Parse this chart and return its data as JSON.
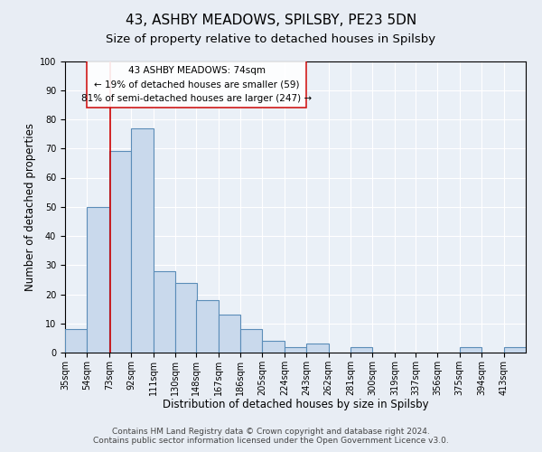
{
  "title": "43, ASHBY MEADOWS, SPILSBY, PE23 5DN",
  "subtitle": "Size of property relative to detached houses in Spilsby",
  "xlabel": "Distribution of detached houses by size in Spilsby",
  "ylabel": "Number of detached properties",
  "footer_line1": "Contains HM Land Registry data © Crown copyright and database right 2024.",
  "footer_line2": "Contains public sector information licensed under the Open Government Licence v3.0.",
  "bin_edges": [
    35,
    54,
    73,
    92,
    111,
    130,
    148,
    167,
    186,
    205,
    224,
    243,
    262,
    281,
    300,
    319,
    337,
    356,
    375,
    394,
    413
  ],
  "bin_labels": [
    "35sqm",
    "54sqm",
    "73sqm",
    "92sqm",
    "111sqm",
    "130sqm",
    "148sqm",
    "167sqm",
    "186sqm",
    "205sqm",
    "224sqm",
    "243sqm",
    "262sqm",
    "281sqm",
    "300sqm",
    "319sqm",
    "337sqm",
    "356sqm",
    "375sqm",
    "394sqm",
    "413sqm"
  ],
  "counts": [
    8,
    50,
    69,
    77,
    28,
    24,
    18,
    13,
    8,
    4,
    2,
    3,
    0,
    2,
    0,
    0,
    0,
    0,
    2,
    0,
    2
  ],
  "bar_color": "#c9d9ec",
  "bar_edge_color": "#5b8db8",
  "bar_linewidth": 0.8,
  "vline_x": 74,
  "vline_color": "#cc0000",
  "vline_linewidth": 1.2,
  "annotation_text_line1": "43 ASHBY MEADOWS: 74sqm",
  "annotation_text_line2": "← 19% of detached houses are smaller (59)",
  "annotation_text_line3": "81% of semi-detached houses are larger (247) →",
  "annotation_rect_color": "#cc0000",
  "ylim": [
    0,
    100
  ],
  "yticks": [
    0,
    10,
    20,
    30,
    40,
    50,
    60,
    70,
    80,
    90,
    100
  ],
  "bg_color": "#e8edf4",
  "plot_bg_color": "#eaf0f7",
  "grid_color": "#ffffff",
  "title_fontsize": 11,
  "subtitle_fontsize": 9.5,
  "axis_label_fontsize": 8.5,
  "tick_fontsize": 7,
  "annotation_fontsize": 7.5,
  "footer_fontsize": 6.5
}
